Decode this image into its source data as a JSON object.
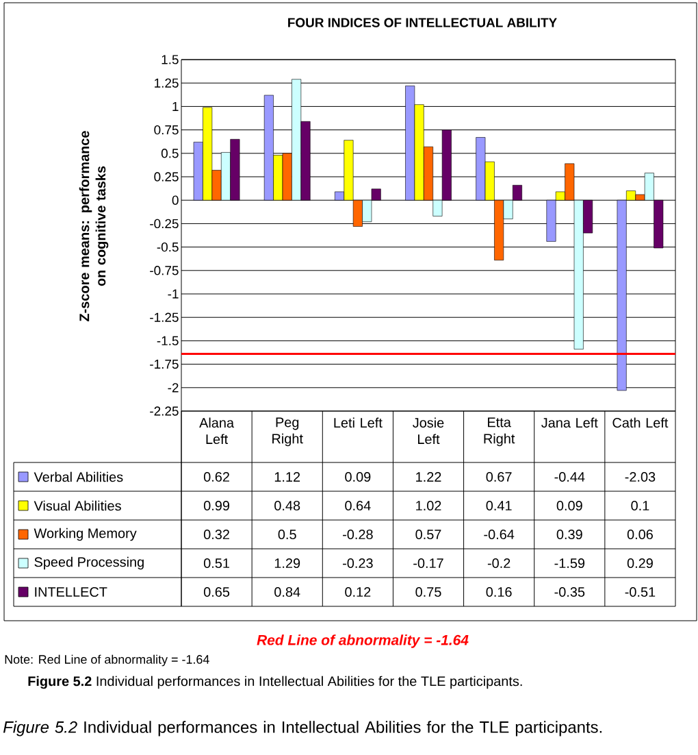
{
  "chart_data": {
    "type": "bar",
    "title": "FOUR INDICES OF INTELLECTUAL ABILITY",
    "ylabel": "Z-score means: performance on cognitive tasks",
    "categories": [
      "Alana Left",
      "Peg Right",
      "Leti Left",
      "Josie Left",
      "Etta Right",
      "Jana Left",
      "Cath Left"
    ],
    "series": [
      {
        "name": "Verbal Abilities",
        "color": "#9999ff",
        "values": [
          0.62,
          1.12,
          0.09,
          1.22,
          0.67,
          -0.44,
          -2.03
        ]
      },
      {
        "name": "Visual Abilities",
        "color": "#ffff00",
        "values": [
          0.99,
          0.48,
          0.64,
          1.02,
          0.41,
          0.09,
          0.1
        ]
      },
      {
        "name": "Working Memory",
        "color": "#ff6600",
        "values": [
          0.32,
          0.5,
          -0.28,
          0.57,
          -0.64,
          0.39,
          0.06
        ]
      },
      {
        "name": "Speed Processing",
        "color": "#ccffff",
        "values": [
          0.51,
          1.29,
          -0.23,
          -0.17,
          -0.2,
          -1.59,
          0.29
        ]
      },
      {
        "name": "INTELLECT",
        "color": "#660066",
        "values": [
          0.65,
          0.84,
          0.12,
          0.75,
          0.16,
          -0.35,
          -0.51
        ]
      }
    ],
    "ylim": [
      -2.25,
      1.5
    ],
    "yticks": [
      1.5,
      1.25,
      1,
      0.75,
      0.5,
      0.25,
      0,
      -0.25,
      -0.5,
      -0.75,
      -1,
      -1.25,
      -1.5,
      -1.75,
      -2,
      -2.25
    ],
    "grid": "y",
    "legend": "bottom",
    "data_labels": true,
    "ref_lines": [
      {
        "axis": "y",
        "value": -1.64,
        "color": "#ff0000"
      }
    ],
    "annotations": [
      "Red Line of abnormality = -1.64",
      "Note: Red Line of abnormality = -1.64",
      "**Figure 5.2** Individual performances in Intellectual Abilities for the TLE participants.",
      "*Figure 5.2* Individual performances in Intellectual Abilities for the TLE participants."
    ]
  }
}
